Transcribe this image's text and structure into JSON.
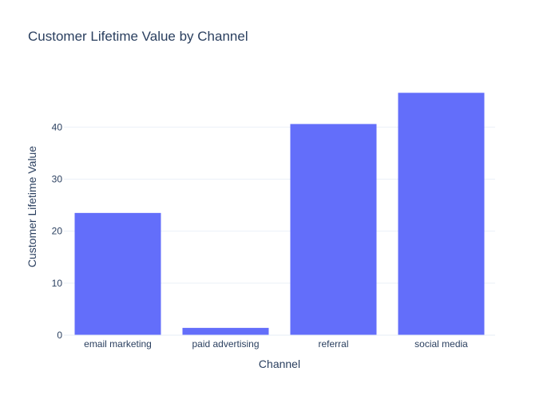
{
  "chart_data": {
    "type": "bar",
    "title": "Customer Lifetime Value by Channel",
    "xlabel": "Channel",
    "ylabel": "Customer Lifetime Value",
    "categories": [
      "email marketing",
      "paid advertising",
      "referral",
      "social media"
    ],
    "values": [
      23.5,
      1.4,
      40.6,
      46.6
    ],
    "ylim": [
      0,
      49.1
    ],
    "yticks": [
      0,
      10,
      20,
      30,
      40
    ],
    "grid": true,
    "bar_color": "#636efa",
    "grid_color": "#ebf0f8",
    "axis_color": "#2a3f5f"
  }
}
